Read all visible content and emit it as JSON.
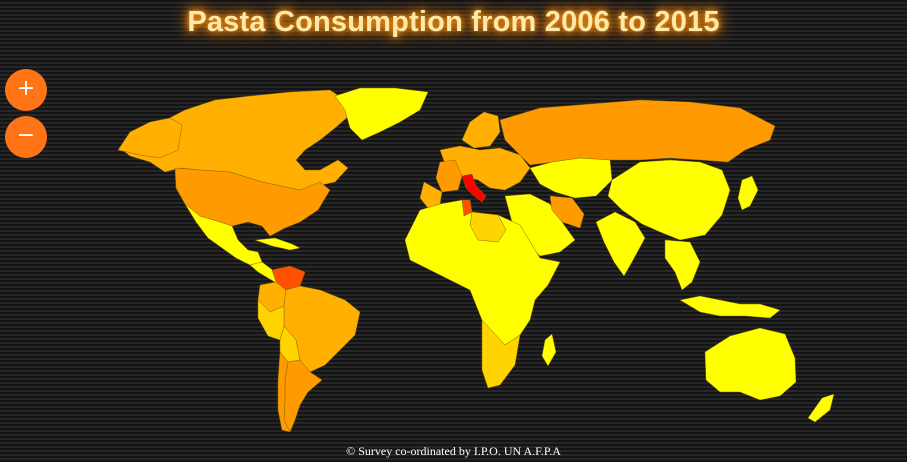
{
  "title": "Pasta Consumption from 2006 to 2015",
  "credits": "©  Survey co-ordinated by I.P.O. UN A.F.P.A",
  "zoom": {
    "in_label": "+",
    "out_label": "−"
  },
  "colors": {
    "background": "#1b1b1b",
    "zoom_button": "#ff7417",
    "title_glow": "#ff8a00",
    "level_low": "#ffff00",
    "level_mid_low": "#ffd400",
    "level_mid": "#ffb000",
    "level_mid_high": "#ff9a00",
    "level_high": "#ff5000",
    "level_top": "#ff0000"
  },
  "map_regions": [
    {
      "id": "north-america",
      "level": "level_mid"
    },
    {
      "id": "alaska",
      "level": "level_mid"
    },
    {
      "id": "greenland",
      "level": "level_low"
    },
    {
      "id": "usa",
      "level": "level_mid_high"
    },
    {
      "id": "mexico",
      "level": "level_low"
    },
    {
      "id": "central-america",
      "level": "level_low"
    },
    {
      "id": "caribbean",
      "level": "level_low"
    },
    {
      "id": "venezuela",
      "level": "level_high"
    },
    {
      "id": "colombia",
      "level": "level_mid"
    },
    {
      "id": "brazil",
      "level": "level_mid"
    },
    {
      "id": "peru",
      "level": "level_mid_low"
    },
    {
      "id": "bolivia",
      "level": "level_mid_low"
    },
    {
      "id": "argentina",
      "level": "level_mid_high"
    },
    {
      "id": "chile",
      "level": "level_mid_high"
    },
    {
      "id": "europe-west",
      "level": "level_mid"
    },
    {
      "id": "france",
      "level": "level_mid_high"
    },
    {
      "id": "iberia",
      "level": "level_mid"
    },
    {
      "id": "italy",
      "level": "level_top"
    },
    {
      "id": "scandinavia",
      "level": "level_mid"
    },
    {
      "id": "russia",
      "level": "level_mid_high"
    },
    {
      "id": "central-asia",
      "level": "level_low"
    },
    {
      "id": "middle-east",
      "level": "level_low"
    },
    {
      "id": "iran",
      "level": "level_mid_high"
    },
    {
      "id": "tunisia",
      "level": "level_high"
    },
    {
      "id": "africa",
      "level": "level_low"
    },
    {
      "id": "libya",
      "level": "level_mid_low"
    },
    {
      "id": "southern-africa",
      "level": "level_mid_low"
    },
    {
      "id": "madagascar",
      "level": "level_low"
    },
    {
      "id": "india",
      "level": "level_low"
    },
    {
      "id": "china",
      "level": "level_low"
    },
    {
      "id": "japan",
      "level": "level_low"
    },
    {
      "id": "southeast-asia",
      "level": "level_low"
    },
    {
      "id": "indonesia",
      "level": "level_low"
    },
    {
      "id": "australia",
      "level": "level_low"
    },
    {
      "id": "new-zealand",
      "level": "level_low"
    }
  ]
}
